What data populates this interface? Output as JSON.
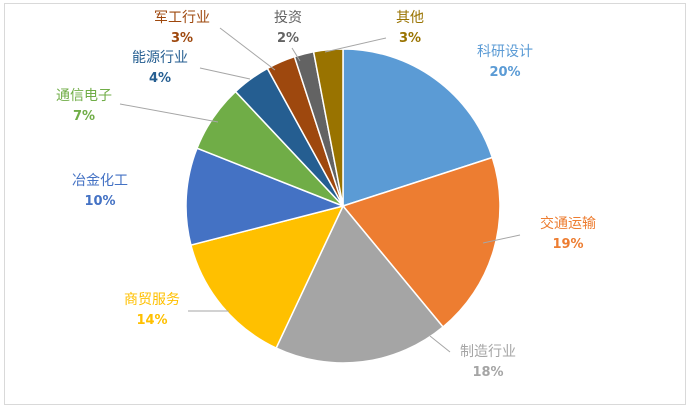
{
  "chart_data": {
    "type": "pie",
    "title": "",
    "slices": [
      {
        "label": "科研设计",
        "value": 20,
        "percent_text": "20%",
        "color": "#5B9BD5"
      },
      {
        "label": "交通运输",
        "value": 19,
        "percent_text": "19%",
        "color": "#ED7D31"
      },
      {
        "label": "制造行业",
        "value": 18,
        "percent_text": "18%",
        "color": "#A5A5A5"
      },
      {
        "label": "商贸服务",
        "value": 14,
        "percent_text": "14%",
        "color": "#FFC000"
      },
      {
        "label": "冶金化工",
        "value": 10,
        "percent_text": "10%",
        "color": "#4472C4"
      },
      {
        "label": "通信电子",
        "value": 7,
        "percent_text": "7%",
        "color": "#70AD47"
      },
      {
        "label": "能源行业",
        "value": 4,
        "percent_text": "4%",
        "color": "#255E91"
      },
      {
        "label": "军工行业",
        "value": 3,
        "percent_text": "3%",
        "color": "#9E480E"
      },
      {
        "label": "投资",
        "value": 2,
        "percent_text": "2%",
        "color": "#636363"
      },
      {
        "label": "其他",
        "value": 3,
        "percent_text": "3%",
        "color": "#997300"
      }
    ],
    "legend": "none",
    "start_angle": "12 o'clock",
    "direction": "clockwise"
  }
}
